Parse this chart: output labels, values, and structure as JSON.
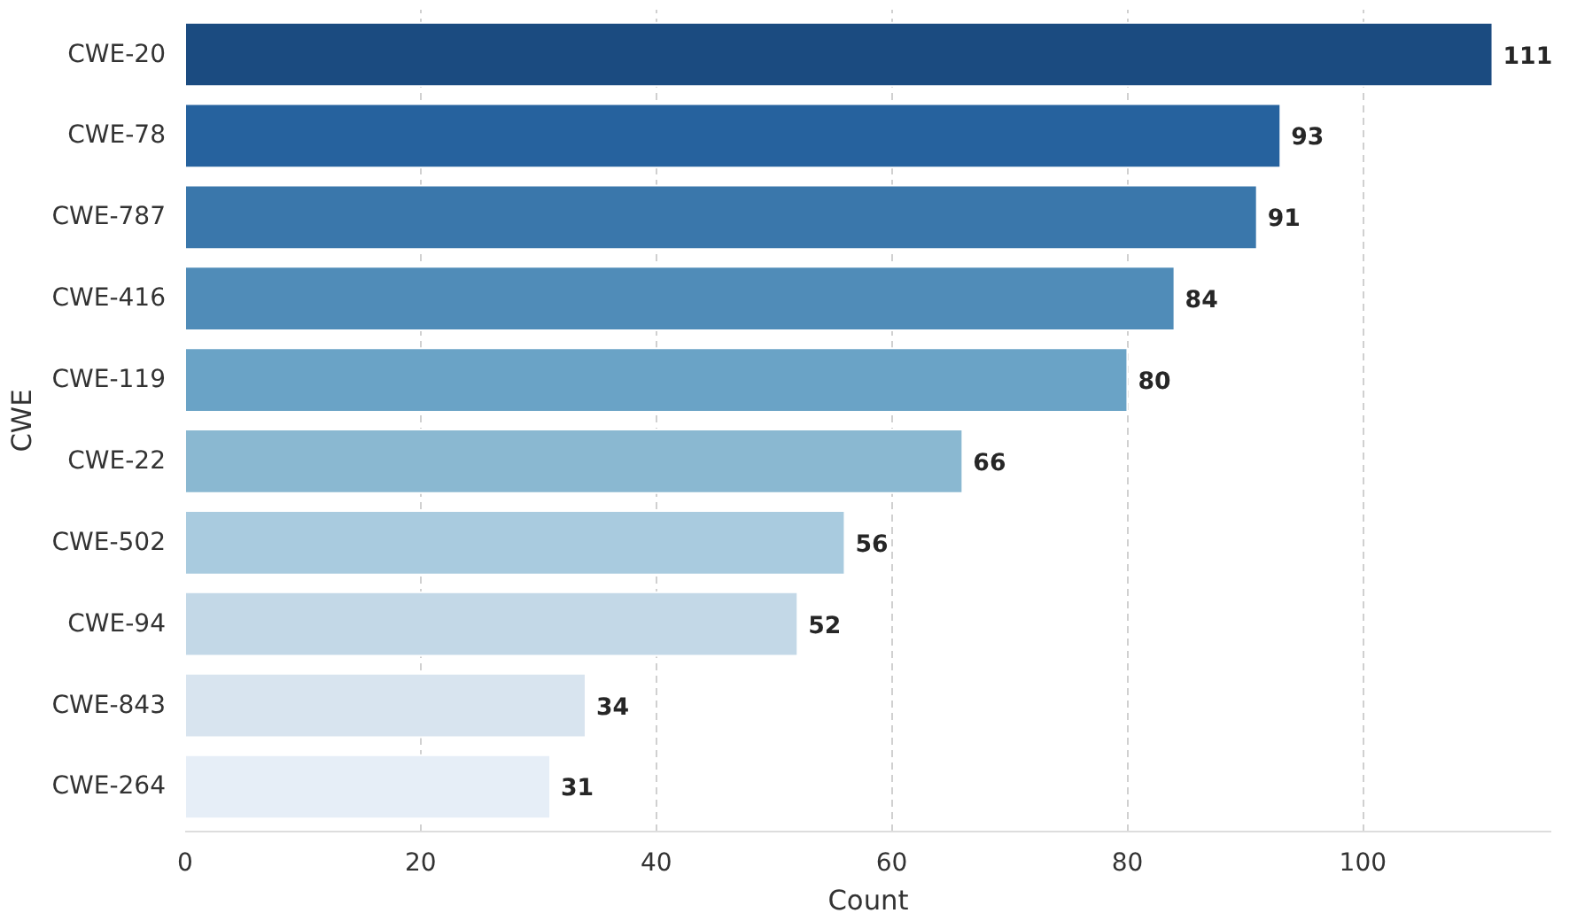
{
  "chart_data": {
    "type": "bar",
    "orientation": "horizontal",
    "xlabel": "Count",
    "ylabel": "CWE",
    "categories": [
      "CWE-20",
      "CWE-78",
      "CWE-787",
      "CWE-416",
      "CWE-119",
      "CWE-22",
      "CWE-502",
      "CWE-94",
      "CWE-843",
      "CWE-264"
    ],
    "values": [
      111,
      93,
      91,
      84,
      80,
      66,
      56,
      52,
      34,
      31
    ],
    "colors": [
      "#1b4b80",
      "#26629e",
      "#3a77ab",
      "#508cb8",
      "#6aa3c6",
      "#8ab8d1",
      "#a9cbdf",
      "#c3d8e7",
      "#d8e4ef",
      "#e6eef7"
    ],
    "xlim": [
      0,
      116
    ],
    "xticks": [
      0,
      20,
      40,
      60,
      80,
      100
    ],
    "grid": "x",
    "data_labels": true
  }
}
